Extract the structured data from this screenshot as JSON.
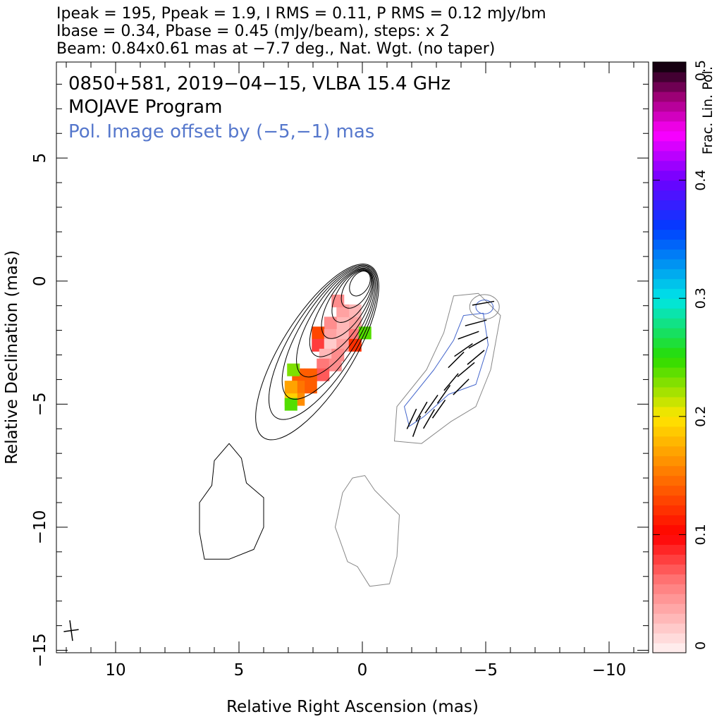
{
  "header": {
    "line1": "Ipeak = 195, Ppeak = 1.9, I RMS = 0.11, P RMS = 0.12 mJy/bm",
    "line2": "Ibase = 0.34, Pbase = 0.45 (mJy/beam), steps: x 2",
    "line3": "Beam: 0.84x0.61 mas at −7.7 deg., Nat. Wgt. (no taper)"
  },
  "colors": {
    "total_intensity_contour": "#000000",
    "pol_intensity_contour": "#4466cc",
    "lowest_contour": "#888888",
    "offset_label": "#5577cc",
    "evpa_ticks": "#000000"
  },
  "chart_data": {
    "type": "heatmap",
    "title": "0850+581, 2019−04−15, VLBA 15.4 GHz",
    "subtitle": "MOJAVE Program",
    "annotation": "Pol. Image offset by (−5,−1) mas",
    "xlabel": "Relative Right Ascension (mas)",
    "ylabel": "Relative Declination (mas)",
    "xlim": [
      12.4,
      -11.6
    ],
    "ylim": [
      -15.1,
      8.9
    ],
    "x_ticks": [
      {
        "value": 10,
        "label": "10"
      },
      {
        "value": 5,
        "label": "5"
      },
      {
        "value": 0,
        "label": "0"
      },
      {
        "value": -5,
        "label": "−5"
      },
      {
        "value": -10,
        "label": "−10"
      }
    ],
    "y_ticks": [
      {
        "value": 5,
        "label": "5"
      },
      {
        "value": 0,
        "label": "0"
      },
      {
        "value": -5,
        "label": "−5"
      },
      {
        "value": -10,
        "label": "−10"
      },
      {
        "value": -15,
        "label": "−15"
      }
    ],
    "colorbar": {
      "label": "Frac. Lin. Pol.",
      "range": [
        0,
        0.5
      ],
      "ticks": [
        {
          "value": 0,
          "label": "0"
        },
        {
          "value": 0.1,
          "label": "0.1"
        },
        {
          "value": 0.2,
          "label": "0.2"
        },
        {
          "value": 0.3,
          "label": "0.3"
        },
        {
          "value": 0.4,
          "label": "0.4"
        },
        {
          "value": 0.5,
          "label": "0.5"
        }
      ]
    },
    "beam": {
      "major_mas": 0.84,
      "minor_mas": 0.61,
      "pa_deg": -7.7,
      "center": [
        11.8,
        -14.2
      ]
    },
    "total_intensity_contours": {
      "peak_mJy_per_beam": 195,
      "base_mJy_per_beam": 0.34,
      "core": [
        0.1,
        -0.1
      ],
      "jet_spine": [
        [
          0.1,
          -0.1
        ],
        [
          0.9,
          -1.6
        ],
        [
          1.6,
          -3.0
        ],
        [
          2.4,
          -4.2
        ],
        [
          3.4,
          -5.4
        ]
      ],
      "levels_semi_axes": [
        [
          4.1,
          1.45
        ],
        [
          3.6,
          1.3
        ],
        [
          3.1,
          1.15
        ],
        [
          2.55,
          1.0
        ],
        [
          2.05,
          0.85
        ],
        [
          1.6,
          0.72
        ],
        [
          1.2,
          0.6
        ],
        [
          0.85,
          0.48
        ],
        [
          0.55,
          0.36
        ]
      ],
      "extended_region_points": [
        [
          5.4,
          -6.6
        ],
        [
          4.9,
          -7.2
        ],
        [
          4.7,
          -8.2
        ],
        [
          4.0,
          -8.8
        ],
        [
          4.0,
          -10.0
        ],
        [
          4.4,
          -10.9
        ],
        [
          5.4,
          -11.3
        ],
        [
          6.4,
          -11.3
        ],
        [
          6.6,
          -10.2
        ],
        [
          6.6,
          -9.0
        ],
        [
          6.1,
          -8.3
        ],
        [
          6.0,
          -7.3
        ]
      ]
    },
    "polarized_intensity_contours": {
      "offset_mas": [
        -5,
        -1
      ],
      "peak_mJy_per_beam": 1.9,
      "base_mJy_per_beam": 0.45,
      "region_points": [
        [
          -3.7,
          -0.6
        ],
        [
          -4.7,
          -0.5
        ],
        [
          -5.6,
          -1.4
        ],
        [
          -5.2,
          -3.6
        ],
        [
          -4.6,
          -5.1
        ],
        [
          -3.6,
          -5.7
        ],
        [
          -2.4,
          -6.6
        ],
        [
          -1.3,
          -6.5
        ],
        [
          -1.4,
          -5.1
        ],
        [
          -2.6,
          -3.6
        ],
        [
          -3.3,
          -2.1
        ]
      ],
      "inner_points": [
        [
          -4.1,
          -1.4
        ],
        [
          -4.9,
          -1.3
        ],
        [
          -5.1,
          -2.6
        ],
        [
          -4.6,
          -4.2
        ],
        [
          -3.5,
          -4.6
        ],
        [
          -2.5,
          -5.5
        ],
        [
          -1.9,
          -5.9
        ],
        [
          -1.7,
          -5.1
        ],
        [
          -2.9,
          -3.6
        ],
        [
          -3.7,
          -2.4
        ]
      ],
      "knot": [
        -4.95,
        -1.05
      ]
    },
    "lowest_contour_region": [
      [
        -0.1,
        -7.9
      ],
      [
        -0.5,
        -8.5
      ],
      [
        -1.5,
        -9.5
      ],
      [
        -1.4,
        -11.2
      ],
      [
        -1.1,
        -12.3
      ],
      [
        -0.3,
        -12.4
      ],
      [
        0.2,
        -11.6
      ],
      [
        0.6,
        -11.4
      ],
      [
        1.1,
        -10.0
      ],
      [
        0.8,
        -8.6
      ],
      [
        0.4,
        -8.0
      ]
    ],
    "evpa_vectors": [
      {
        "x": -4.9,
        "y": -0.9,
        "angle_deg": 80
      },
      {
        "x": -4.6,
        "y": -1.7,
        "angle_deg": 75
      },
      {
        "x": -4.3,
        "y": -2.2,
        "angle_deg": 70
      },
      {
        "x": -4.7,
        "y": -2.5,
        "angle_deg": 60
      },
      {
        "x": -4.1,
        "y": -2.8,
        "angle_deg": 55
      },
      {
        "x": -4.6,
        "y": -3.1,
        "angle_deg": 50
      },
      {
        "x": -3.8,
        "y": -3.2,
        "angle_deg": 45
      },
      {
        "x": -4.2,
        "y": -3.6,
        "angle_deg": 50
      },
      {
        "x": -3.6,
        "y": -4.1,
        "angle_deg": 40
      },
      {
        "x": -4.0,
        "y": -4.3,
        "angle_deg": 45
      },
      {
        "x": -3.3,
        "y": -4.6,
        "angle_deg": 35
      },
      {
        "x": -2.8,
        "y": -5.0,
        "angle_deg": 35
      },
      {
        "x": -2.4,
        "y": -5.3,
        "angle_deg": 30
      },
      {
        "x": -2.0,
        "y": -5.6,
        "angle_deg": 25
      },
      {
        "x": -2.2,
        "y": -5.9,
        "angle_deg": 20
      },
      {
        "x": -2.7,
        "y": -5.6,
        "angle_deg": 30
      },
      {
        "x": -3.1,
        "y": -5.2,
        "angle_deg": 35
      }
    ],
    "fractional_pol_pixels": [
      {
        "x": 0.3,
        "y": -1.7,
        "v": 0.04
      },
      {
        "x": 0.8,
        "y": -1.7,
        "v": 0.03
      },
      {
        "x": 1.3,
        "y": -1.7,
        "v": 0.05
      },
      {
        "x": 0.3,
        "y": -1.2,
        "v": 0.03
      },
      {
        "x": 0.8,
        "y": -1.2,
        "v": 0.04
      },
      {
        "x": 1.0,
        "y": -0.8,
        "v": 0.05
      },
      {
        "x": 1.8,
        "y": -2.1,
        "v": 0.13
      },
      {
        "x": 1.3,
        "y": -2.2,
        "v": 0.04
      },
      {
        "x": 0.8,
        "y": -2.2,
        "v": 0.03
      },
      {
        "x": 0.3,
        "y": -2.2,
        "v": 0.06
      },
      {
        "x": -0.1,
        "y": -2.1,
        "v": 0.24
      },
      {
        "x": 1.8,
        "y": -2.6,
        "v": 0.08
      },
      {
        "x": 1.3,
        "y": -2.6,
        "v": 0.02
      },
      {
        "x": 0.8,
        "y": -2.6,
        "v": 0.04
      },
      {
        "x": 0.3,
        "y": -2.6,
        "v": 0.12
      },
      {
        "x": 1.5,
        "y": -3.0,
        "v": 0.03
      },
      {
        "x": 1.0,
        "y": -3.0,
        "v": 0.05
      },
      {
        "x": 1.6,
        "y": -3.4,
        "v": 0.06
      },
      {
        "x": 1.1,
        "y": -3.4,
        "v": 0.05
      },
      {
        "x": 1.6,
        "y": -3.8,
        "v": 0.07
      },
      {
        "x": 2.1,
        "y": -3.8,
        "v": 0.14
      },
      {
        "x": 2.6,
        "y": -3.8,
        "v": 0.14
      },
      {
        "x": 2.8,
        "y": -3.6,
        "v": 0.23
      },
      {
        "x": 2.1,
        "y": -4.3,
        "v": 0.14
      },
      {
        "x": 2.6,
        "y": -4.3,
        "v": 0.15
      },
      {
        "x": 2.6,
        "y": -4.8,
        "v": 0.16
      },
      {
        "x": 2.9,
        "y": -4.8,
        "v": 0.19
      },
      {
        "x": 2.9,
        "y": -4.3,
        "v": 0.17
      },
      {
        "x": 2.9,
        "y": -5.0,
        "v": 0.24
      }
    ]
  }
}
